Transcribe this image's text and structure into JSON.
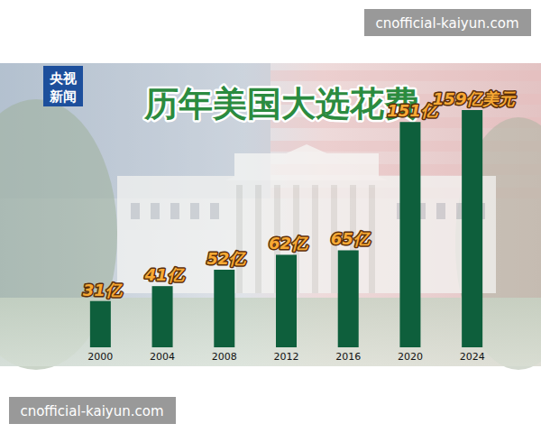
{
  "chart_data": {
    "type": "bar",
    "title": "历年美国大选花费",
    "categories": [
      "2000",
      "2004",
      "2008",
      "2012",
      "2016",
      "2020",
      "2024"
    ],
    "values": [
      31,
      41,
      52,
      62,
      65,
      151,
      159
    ],
    "value_labels": [
      "31亿",
      "41亿",
      "52亿",
      "62亿",
      "65亿",
      "151亿",
      "159亿美元"
    ],
    "color": "#0e5f3c",
    "data_labels": true,
    "tick_labels": "x",
    "annotations": [
      "央视",
      "新闻",
      "cnofficial-kaiyun.com"
    ]
  }
}
